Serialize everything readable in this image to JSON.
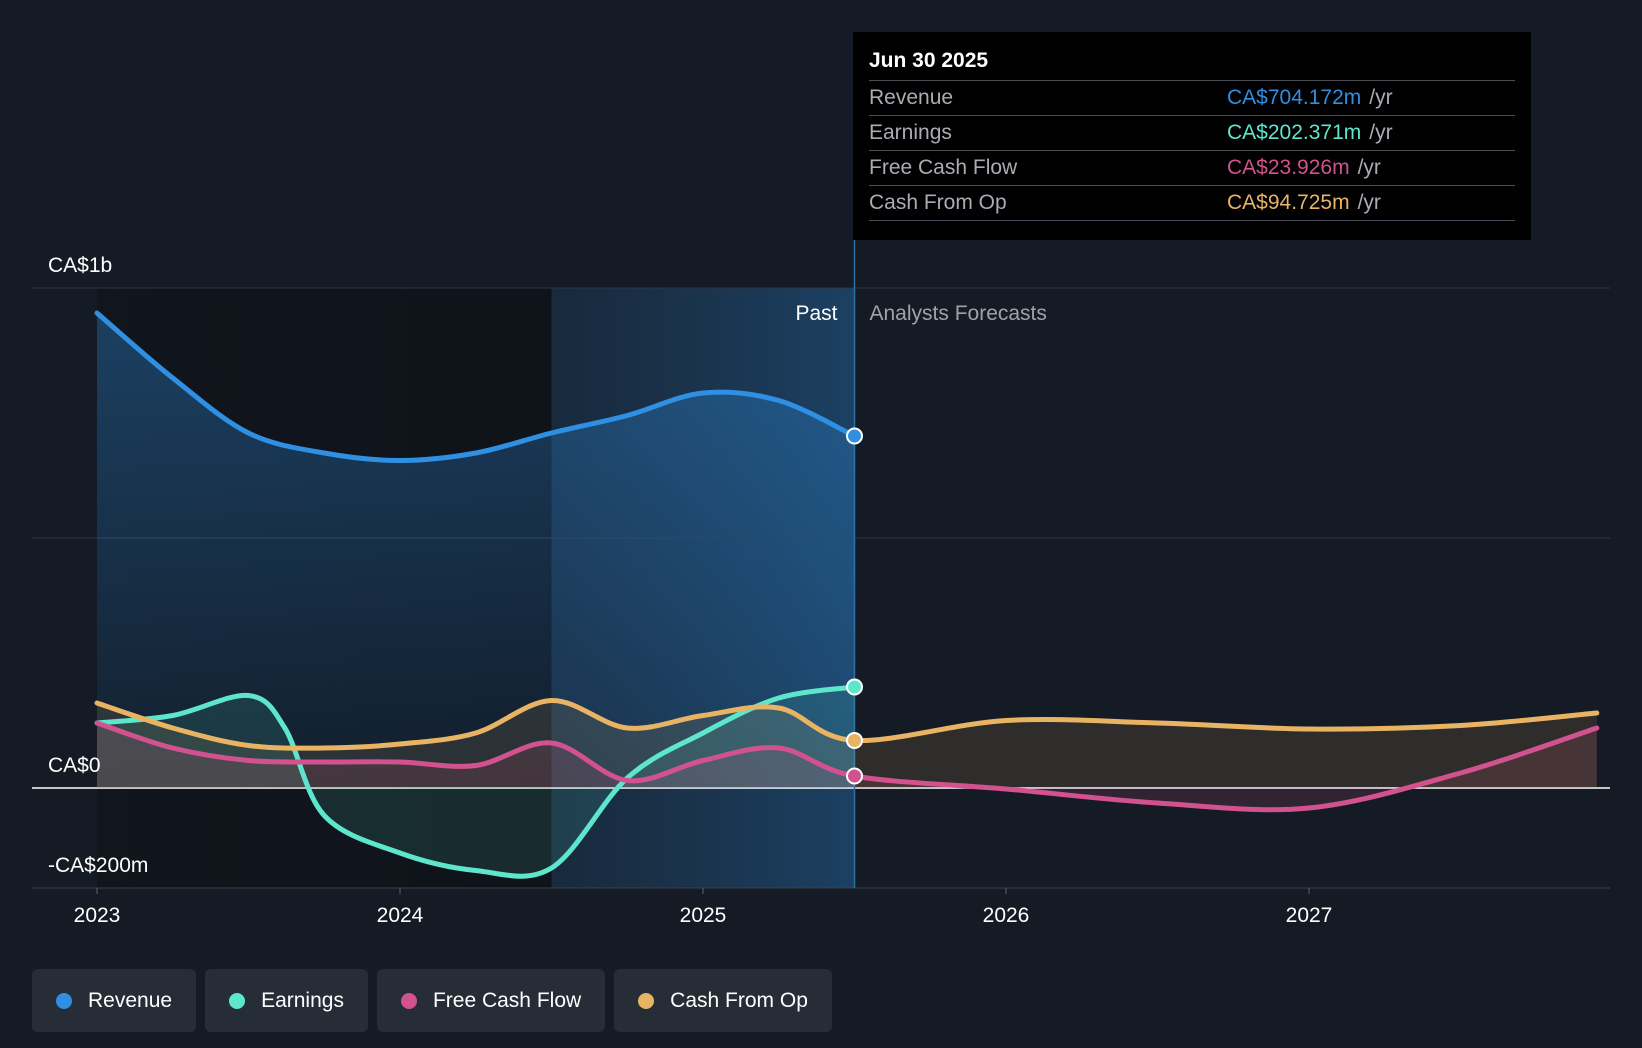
{
  "chart_data": {
    "type": "line",
    "title": "",
    "x_ticks": [
      "2023",
      "2024",
      "2025",
      "2026",
      "2027"
    ],
    "y_tick_labels": [
      "CA$1b",
      "CA$0",
      "-CA$200m"
    ],
    "y_range_millions": [
      -200,
      1000
    ],
    "past_label": "Past",
    "forecast_label": "Analysts Forecasts",
    "past_end": 2025.5,
    "series": [
      {
        "name": "Revenue",
        "color": "#2f8fe2",
        "points": [
          [
            2023.0,
            950
          ],
          [
            2023.25,
            820
          ],
          [
            2023.5,
            710
          ],
          [
            2023.75,
            670
          ],
          [
            2024.0,
            655
          ],
          [
            2024.25,
            670
          ],
          [
            2024.5,
            710
          ],
          [
            2024.75,
            745
          ],
          [
            2025.0,
            790
          ],
          [
            2025.25,
            775
          ],
          [
            2025.5,
            704
          ]
        ]
      },
      {
        "name": "Earnings",
        "color": "#5ee6cd",
        "points": [
          [
            2023.0,
            130
          ],
          [
            2023.25,
            145
          ],
          [
            2023.5,
            185
          ],
          [
            2023.62,
            120
          ],
          [
            2023.75,
            -55
          ],
          [
            2024.0,
            -130
          ],
          [
            2024.25,
            -165
          ],
          [
            2024.5,
            -160
          ],
          [
            2024.75,
            20
          ],
          [
            2025.0,
            110
          ],
          [
            2025.25,
            180
          ],
          [
            2025.5,
            202
          ]
        ]
      },
      {
        "name": "Free Cash Flow",
        "color": "#d1528e",
        "points": [
          [
            2023.0,
            130
          ],
          [
            2023.25,
            80
          ],
          [
            2023.5,
            55
          ],
          [
            2023.75,
            52
          ],
          [
            2024.0,
            52
          ],
          [
            2024.25,
            45
          ],
          [
            2024.5,
            90
          ],
          [
            2024.75,
            15
          ],
          [
            2025.0,
            55
          ],
          [
            2025.25,
            80
          ],
          [
            2025.5,
            24
          ],
          [
            2026.0,
            -2
          ],
          [
            2026.5,
            -30
          ],
          [
            2027.0,
            -40
          ],
          [
            2027.5,
            30
          ],
          [
            2027.95,
            120
          ]
        ],
        "forecast_from": 2025.5
      },
      {
        "name": "Cash From Op",
        "color": "#e8b463",
        "points": [
          [
            2023.0,
            170
          ],
          [
            2023.25,
            120
          ],
          [
            2023.5,
            85
          ],
          [
            2023.75,
            80
          ],
          [
            2024.0,
            88
          ],
          [
            2024.25,
            110
          ],
          [
            2024.5,
            175
          ],
          [
            2024.75,
            120
          ],
          [
            2025.0,
            145
          ],
          [
            2025.25,
            160
          ],
          [
            2025.5,
            95
          ],
          [
            2026.0,
            135
          ],
          [
            2026.5,
            130
          ],
          [
            2027.0,
            118
          ],
          [
            2027.5,
            125
          ],
          [
            2027.95,
            150
          ]
        ],
        "forecast_from": 2025.5
      }
    ]
  },
  "tooltip": {
    "date": "Jun 30 2025",
    "rows": [
      {
        "label": "Revenue",
        "value": "CA$704.172m",
        "unit": "/yr",
        "color": "#2f8fe2"
      },
      {
        "label": "Earnings",
        "value": "CA$202.371m",
        "unit": "/yr",
        "color": "#5ee6cd"
      },
      {
        "label": "Free Cash Flow",
        "value": "CA$23.926m",
        "unit": "/yr",
        "color": "#d1528e"
      },
      {
        "label": "Cash From Op",
        "value": "CA$94.725m",
        "unit": "/yr",
        "color": "#e8b463"
      }
    ]
  },
  "legend": [
    {
      "label": "Revenue",
      "color": "#2f8fe2"
    },
    {
      "label": "Earnings",
      "color": "#5ee6cd"
    },
    {
      "label": "Free Cash Flow",
      "color": "#d1528e"
    },
    {
      "label": "Cash From Op",
      "color": "#e8b463"
    }
  ]
}
